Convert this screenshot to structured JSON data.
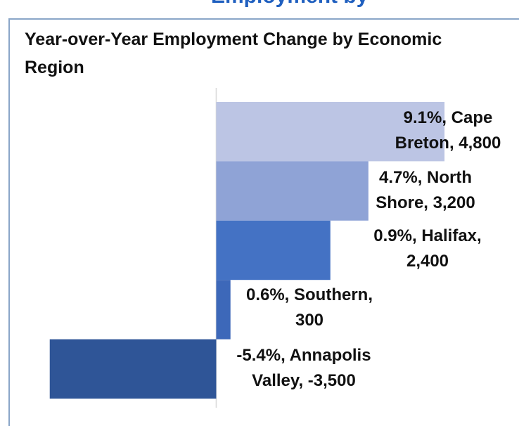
{
  "page_heading": "Employment by",
  "chart_data": {
    "type": "barh",
    "title": "Year-over-Year Employment Change by Economic Region",
    "categories": [
      "Cape Breton",
      "North Shore",
      "Halifax",
      "Southern",
      "Annapolis Valley"
    ],
    "values": [
      4800,
      3200,
      2400,
      300,
      -3500
    ],
    "data_labels": [
      "9.1%, Cape Breton, 4,800",
      "4.7%, North Shore, 3,200",
      "0.9%, Halifax, 2,400",
      "0.6%, Southern, 300",
      "-5.4%, Annapolis Valley, -3,500"
    ],
    "colors": [
      "#bcc5e4",
      "#8fa3d6",
      "#4472c4",
      "#3d68b9",
      "#2f5597"
    ],
    "xlim": [
      -4250,
      6100
    ]
  }
}
